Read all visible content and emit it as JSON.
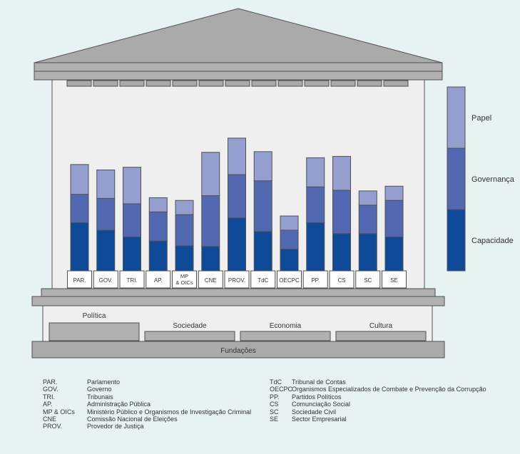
{
  "chart_data": {
    "type": "bar",
    "stacked": true,
    "categories": [
      "PAR.",
      "GOV.",
      "TRI.",
      "AP.",
      "MP & OICs",
      "CNE",
      "PROV.",
      "TdC",
      "OECPC",
      "PP.",
      "CS",
      "SC",
      "SE"
    ],
    "series": [
      {
        "name": "Capacidade",
        "values": [
          71,
          60,
          50,
          44,
          37,
          36,
          78,
          58,
          32,
          71,
          55,
          55,
          50
        ]
      },
      {
        "name": "Governança",
        "values": [
          42,
          47,
          49,
          43,
          46,
          75,
          64,
          75,
          28,
          53,
          64,
          42,
          54
        ]
      },
      {
        "name": "Papel",
        "values": [
          44,
          42,
          54,
          21,
          21,
          64,
          54,
          43,
          21,
          43,
          50,
          21,
          21
        ]
      }
    ],
    "colors": {
      "Capacidade": "#0f4a98",
      "Governança": "#5268b1",
      "Papel": "#949fcf"
    },
    "ylim": [
      0,
      200
    ],
    "grid": false,
    "legend_position": "right"
  },
  "category_lines": {
    "MP & OICs": [
      "MP",
      "& OICs"
    ]
  },
  "legend_entries": [
    "Papel",
    "Governança",
    "Capacidade"
  ],
  "base_labels": {
    "politica": "Política",
    "sociedade": "Sociedade",
    "economia": "Economia",
    "cultura": "Cultura",
    "fundacoes": "Fundações"
  },
  "glossary_left": [
    {
      "abbr": "PAR.",
      "text": "Parlamento"
    },
    {
      "abbr": "GOV.",
      "text": "Governo"
    },
    {
      "abbr": "TRI.",
      "text": "Tribunais"
    },
    {
      "abbr": "AP.",
      "text": "Administração Pública"
    },
    {
      "abbr": "MP & OICs",
      "text": "Ministério Público e Organismos de Investigação Criminal"
    },
    {
      "abbr": "CNE",
      "text": "Comissão Nacional de Eleições"
    },
    {
      "abbr": "PROV.",
      "text": "Provedor de Justiça"
    }
  ],
  "glossary_right": [
    {
      "abbr": "TdC",
      "text": "Tribunal de Contas"
    },
    {
      "abbr": "OECPC",
      "text": "Organismos Especializados de Combate e Prevenção da Corrupção"
    },
    {
      "abbr": "PP.",
      "text": "Partidos Políticos"
    },
    {
      "abbr": "CS",
      "text": "Comunciação Social"
    },
    {
      "abbr": "SC",
      "text": "Sociedade Civil"
    },
    {
      "abbr": "SE",
      "text": "Sector Empresarial"
    }
  ],
  "colors": {
    "background": "#e7f3f3",
    "building_fill": "#efefef",
    "building_dark": "#a9a9a9",
    "outline": "#505050"
  }
}
